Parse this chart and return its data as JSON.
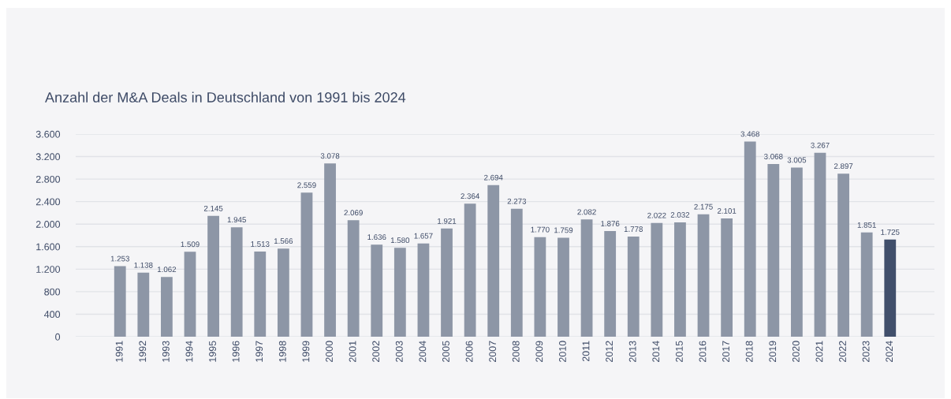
{
  "chart_data": {
    "type": "bar",
    "title": "Anzahl der M&A Deals in Deutschland von 1991 bis 2024",
    "categories": [
      "1991",
      "1992",
      "1993",
      "1994",
      "1995",
      "1996",
      "1997",
      "1998",
      "1999",
      "2000",
      "2001",
      "2002",
      "2003",
      "2004",
      "2005",
      "2006",
      "2007",
      "2008",
      "2009",
      "2010",
      "2011",
      "2012",
      "2013",
      "2014",
      "2015",
      "2016",
      "2017",
      "2018",
      "2019",
      "2020",
      "2021",
      "2022",
      "2023",
      "2024"
    ],
    "values": [
      1253,
      1138,
      1062,
      1509,
      2145,
      1945,
      1513,
      1566,
      2559,
      3078,
      2069,
      1636,
      1580,
      1657,
      1921,
      2364,
      2694,
      2273,
      1770,
      1759,
      2082,
      1876,
      1778,
      2022,
      2032,
      2175,
      2101,
      3468,
      3068,
      3005,
      3267,
      2897,
      1851,
      1725
    ],
    "value_labels": [
      "1.253",
      "1.138",
      "1.062",
      "1.509",
      "2.145",
      "1.945",
      "1.513",
      "1.566",
      "2.559",
      "3.078",
      "2.069",
      "1.636",
      "1.580",
      "1.657",
      "1.921",
      "2.364",
      "2.694",
      "2.273",
      "1.770",
      "1.759",
      "2.082",
      "1.876",
      "1.778",
      "2.022",
      "2.032",
      "2.175",
      "2.101",
      "3.468",
      "3.068",
      "3.005",
      "3.267",
      "2.897",
      "1.851",
      "1.725"
    ],
    "colors": [
      "#8d96a6",
      "#8d96a6",
      "#8d96a6",
      "#8d96a6",
      "#8d96a6",
      "#8d96a6",
      "#8d96a6",
      "#8d96a6",
      "#8d96a6",
      "#8d96a6",
      "#8d96a6",
      "#8d96a6",
      "#8d96a6",
      "#8d96a6",
      "#8d96a6",
      "#8d96a6",
      "#8d96a6",
      "#8d96a6",
      "#8d96a6",
      "#8d96a6",
      "#8d96a6",
      "#8d96a6",
      "#8d96a6",
      "#8d96a6",
      "#8d96a6",
      "#8d96a6",
      "#8d96a6",
      "#8d96a6",
      "#8d96a6",
      "#8d96a6",
      "#8d96a6",
      "#8d96a6",
      "#8d96a6",
      "#414f6b"
    ],
    "ylim": [
      0,
      3600
    ],
    "yticks": [
      0,
      400,
      800,
      {
        "value": 1200,
        "label": "1.200"
      },
      {
        "value": 1600,
        "label": "1.600"
      },
      {
        "value": 2000,
        "label": "2.000"
      },
      {
        "value": 2400,
        "label": "2.400"
      },
      {
        "value": 2800,
        "label": "2.800"
      },
      {
        "value": 3200,
        "label": "3.200"
      },
      {
        "value": 3600,
        "label": "3.600"
      }
    ],
    "grid": "y",
    "legend": false
  }
}
